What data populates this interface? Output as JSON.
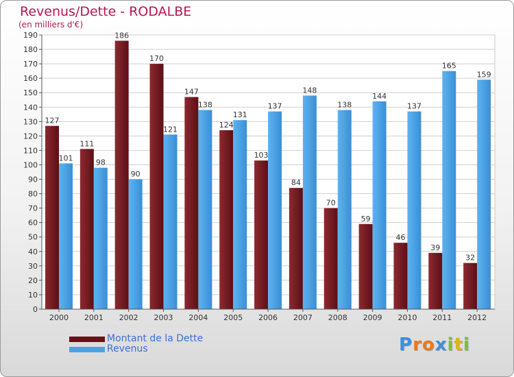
{
  "title": "Revenus/Dette - RODALBE",
  "subtitle": "(en milliers d'€)",
  "chart_data": {
    "type": "bar",
    "categories": [
      "2000",
      "2001",
      "2002",
      "2003",
      "2004",
      "2005",
      "2006",
      "2007",
      "2008",
      "2009",
      "2010",
      "2011",
      "2012"
    ],
    "series": [
      {
        "name": "Montant de la Dette",
        "color": "#7a1c24",
        "values": [
          127,
          111,
          186,
          170,
          147,
          124,
          103,
          84,
          70,
          59,
          46,
          39,
          32
        ]
      },
      {
        "name": "Revenus",
        "color": "#4aa3e8",
        "values": [
          101,
          98,
          90,
          121,
          138,
          131,
          137,
          148,
          138,
          144,
          137,
          165,
          159
        ]
      }
    ],
    "ylim": [
      0,
      190
    ],
    "ytick_step": 10,
    "grid": true,
    "legend_position": "bottom-left"
  },
  "legend": {
    "dette_label": "Montant de la Dette",
    "revenus_label": "Revenus"
  },
  "logo": {
    "letters": [
      {
        "ch": "P",
        "color": "#3f8fd8"
      },
      {
        "ch": "r",
        "color": "#e87a1e"
      },
      {
        "ch": "o",
        "color": "#e87a1e"
      },
      {
        "ch": "x",
        "color": "#3f8fd8"
      },
      {
        "ch": "i",
        "color": "#7cbf3a"
      },
      {
        "ch": "t",
        "color": "#e2b21a"
      },
      {
        "ch": "i",
        "color": "#7cbf3a"
      }
    ]
  }
}
